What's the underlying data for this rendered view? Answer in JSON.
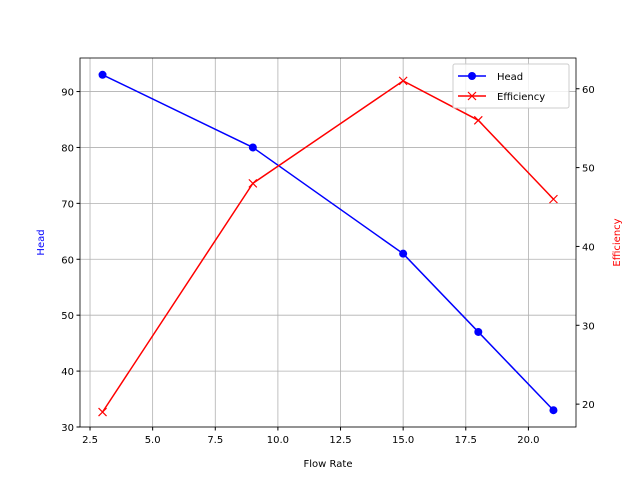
{
  "chart_data": {
    "type": "line",
    "title": "",
    "xlabel": "Flow Rate",
    "ylabel": "Head",
    "y2label": "Efficiency",
    "x": [
      3,
      9,
      15,
      18,
      21
    ],
    "series": [
      {
        "name": "Head",
        "axis": "left",
        "color": "#0000ff",
        "marker": "circle",
        "values": [
          93,
          80,
          61,
          47,
          33
        ]
      },
      {
        "name": "Efficiency",
        "axis": "right",
        "color": "#ff0000",
        "marker": "x",
        "values": [
          19,
          48,
          61,
          56,
          46
        ]
      }
    ],
    "xticks": [
      "2.5",
      "5.0",
      "7.5",
      "10.0",
      "12.5",
      "15.0",
      "17.5",
      "20.0"
    ],
    "yticks": [
      "30",
      "40",
      "50",
      "60",
      "70",
      "80",
      "90"
    ],
    "y2ticks": [
      "20",
      "30",
      "40",
      "50",
      "60"
    ],
    "xlim": [
      2.1,
      21.9
    ],
    "ylim": [
      30,
      96
    ],
    "y2lim": [
      17.1,
      63.9
    ],
    "grid": true,
    "legend_position": "upper right"
  }
}
